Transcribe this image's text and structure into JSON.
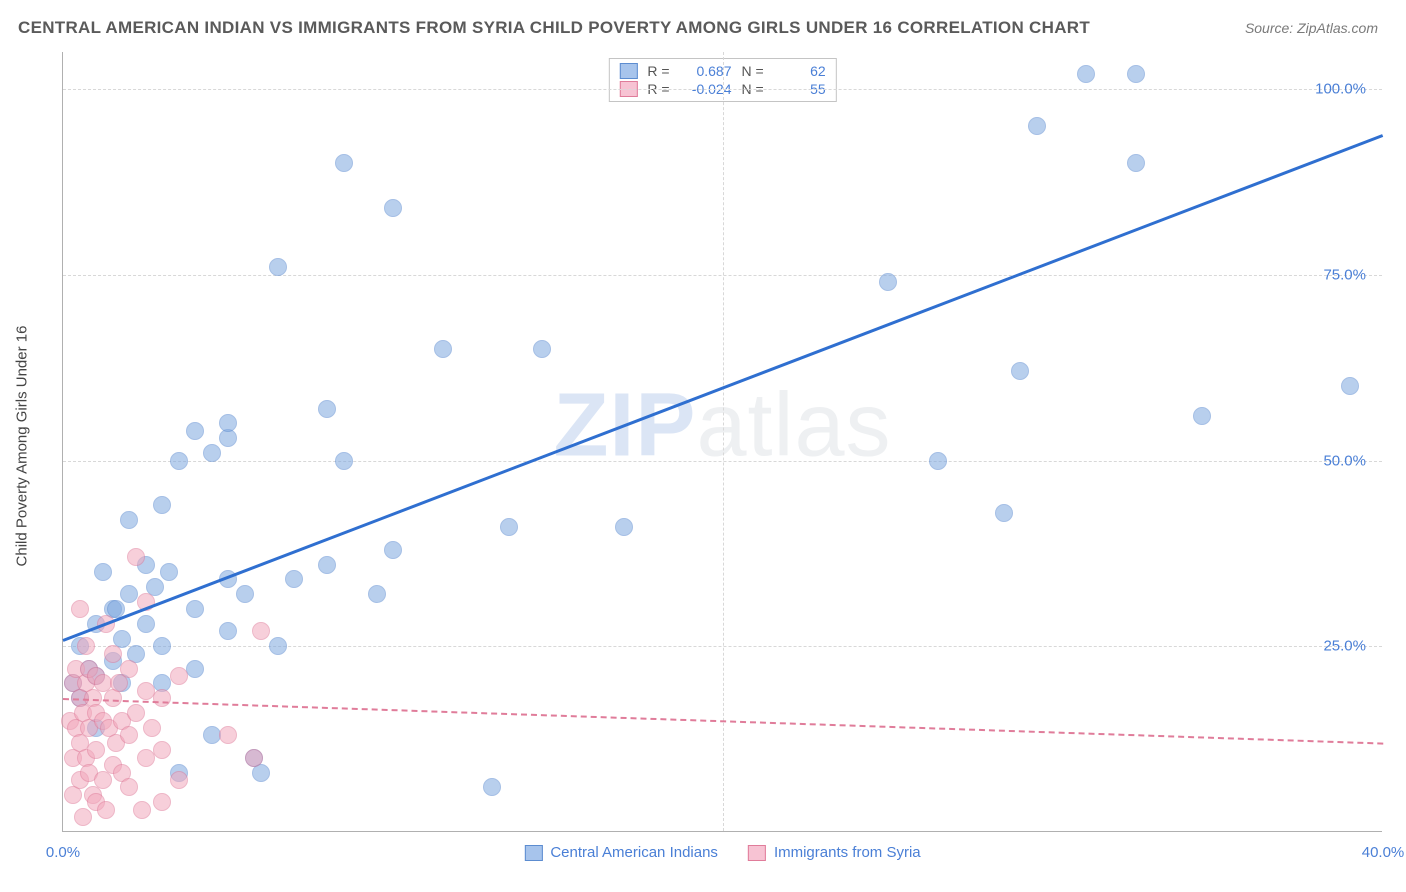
{
  "title": "CENTRAL AMERICAN INDIAN VS IMMIGRANTS FROM SYRIA CHILD POVERTY AMONG GIRLS UNDER 16 CORRELATION CHART",
  "source": "Source: ZipAtlas.com",
  "ylabel": "Child Poverty Among Girls Under 16",
  "watermark": {
    "part1": "ZIP",
    "part2": "atlas"
  },
  "chart": {
    "type": "scatter",
    "background_color": "#ffffff",
    "grid_color": "#d8d8d8",
    "axis_color": "#b0b0b0",
    "tick_label_color": "#4a7fd6",
    "tick_fontsize": 15,
    "xlim": [
      0,
      40
    ],
    "ylim": [
      0,
      105
    ],
    "xticks": [
      0,
      20,
      40
    ],
    "xtick_labels": [
      "0.0%",
      "",
      "40.0%"
    ],
    "yticks": [
      25,
      50,
      75,
      100
    ],
    "ytick_labels": [
      "25.0%",
      "50.0%",
      "75.0%",
      "100.0%"
    ],
    "gridlines_x_at": [
      20
    ],
    "marker_radius": 9,
    "marker_opacity": 0.55,
    "marker_stroke_opacity": 0.9
  },
  "series": [
    {
      "name": "Central American Indians",
      "color": "#7fa8e0",
      "stroke": "#5c8cd0",
      "trend": {
        "color": "#2f6fd0",
        "width": 3,
        "dashed": false,
        "y0": 26,
        "y1": 94
      },
      "points": [
        [
          0.3,
          20
        ],
        [
          0.5,
          18
        ],
        [
          0.5,
          25
        ],
        [
          0.8,
          22
        ],
        [
          1.0,
          14
        ],
        [
          1.0,
          21
        ],
        [
          1.0,
          28
        ],
        [
          1.2,
          35
        ],
        [
          1.5,
          23
        ],
        [
          1.5,
          30
        ],
        [
          1.6,
          30
        ],
        [
          1.8,
          20
        ],
        [
          1.8,
          26
        ],
        [
          2.0,
          32
        ],
        [
          2.0,
          42
        ],
        [
          2.2,
          24
        ],
        [
          2.5,
          28
        ],
        [
          2.5,
          36
        ],
        [
          2.8,
          33
        ],
        [
          3.0,
          20
        ],
        [
          3.0,
          25
        ],
        [
          3.0,
          44
        ],
        [
          3.2,
          35
        ],
        [
          3.5,
          8
        ],
        [
          3.5,
          50
        ],
        [
          4.0,
          22
        ],
        [
          4.0,
          30
        ],
        [
          4.0,
          54
        ],
        [
          4.5,
          13
        ],
        [
          4.5,
          51
        ],
        [
          5.0,
          27
        ],
        [
          5.0,
          34
        ],
        [
          5.0,
          53
        ],
        [
          5.0,
          55
        ],
        [
          5.5,
          32
        ],
        [
          5.8,
          10
        ],
        [
          6.0,
          8
        ],
        [
          6.5,
          25
        ],
        [
          6.5,
          76
        ],
        [
          7.0,
          34
        ],
        [
          8.0,
          36
        ],
        [
          8.0,
          57
        ],
        [
          8.5,
          50
        ],
        [
          8.5,
          90
        ],
        [
          9.5,
          32
        ],
        [
          10.0,
          38
        ],
        [
          10.0,
          84
        ],
        [
          11.5,
          65
        ],
        [
          13.0,
          6
        ],
        [
          13.5,
          41
        ],
        [
          14.5,
          65
        ],
        [
          17.0,
          41
        ],
        [
          25.0,
          74
        ],
        [
          26.5,
          50
        ],
        [
          28.5,
          43
        ],
        [
          29.0,
          62
        ],
        [
          29.5,
          95
        ],
        [
          31.0,
          102
        ],
        [
          32.5,
          102
        ],
        [
          32.5,
          90
        ],
        [
          34.5,
          56
        ],
        [
          39.0,
          60
        ]
      ]
    },
    {
      "name": "Immigrants from Syria",
      "color": "#f2a8bc",
      "stroke": "#e07c9a",
      "trend": {
        "color": "#e07c9a",
        "width": 2,
        "dashed": true,
        "y0": 18,
        "y1": 12
      },
      "points": [
        [
          0.2,
          15
        ],
        [
          0.3,
          5
        ],
        [
          0.3,
          10
        ],
        [
          0.3,
          20
        ],
        [
          0.4,
          14
        ],
        [
          0.4,
          22
        ],
        [
          0.5,
          7
        ],
        [
          0.5,
          12
        ],
        [
          0.5,
          18
        ],
        [
          0.5,
          30
        ],
        [
          0.6,
          2
        ],
        [
          0.6,
          16
        ],
        [
          0.7,
          10
        ],
        [
          0.7,
          20
        ],
        [
          0.7,
          25
        ],
        [
          0.8,
          8
        ],
        [
          0.8,
          14
        ],
        [
          0.8,
          22
        ],
        [
          0.9,
          5
        ],
        [
          0.9,
          18
        ],
        [
          1.0,
          4
        ],
        [
          1.0,
          11
        ],
        [
          1.0,
          16
        ],
        [
          1.0,
          21
        ],
        [
          1.2,
          7
        ],
        [
          1.2,
          15
        ],
        [
          1.2,
          20
        ],
        [
          1.3,
          3
        ],
        [
          1.3,
          28
        ],
        [
          1.4,
          14
        ],
        [
          1.5,
          9
        ],
        [
          1.5,
          18
        ],
        [
          1.5,
          24
        ],
        [
          1.6,
          12
        ],
        [
          1.7,
          20
        ],
        [
          1.8,
          8
        ],
        [
          1.8,
          15
        ],
        [
          2.0,
          6
        ],
        [
          2.0,
          13
        ],
        [
          2.0,
          22
        ],
        [
          2.2,
          16
        ],
        [
          2.2,
          37
        ],
        [
          2.4,
          3
        ],
        [
          2.5,
          10
        ],
        [
          2.5,
          19
        ],
        [
          2.5,
          31
        ],
        [
          2.7,
          14
        ],
        [
          3.0,
          4
        ],
        [
          3.0,
          11
        ],
        [
          3.0,
          18
        ],
        [
          3.5,
          7
        ],
        [
          3.5,
          21
        ],
        [
          5.0,
          13
        ],
        [
          5.8,
          10
        ],
        [
          6.0,
          27
        ]
      ]
    }
  ],
  "legend_top": {
    "rows": [
      {
        "swatch_fill": "#a7c4ec",
        "swatch_stroke": "#5c8cd0",
        "r_label": "R =",
        "r_value": "0.687",
        "n_label": "N =",
        "n_value": "62"
      },
      {
        "swatch_fill": "#f7c3d3",
        "swatch_stroke": "#e07c9a",
        "r_label": "R =",
        "r_value": "-0.024",
        "n_label": "N =",
        "n_value": "55"
      }
    ]
  },
  "legend_bottom": {
    "items": [
      {
        "swatch_fill": "#a7c4ec",
        "swatch_stroke": "#5c8cd0",
        "label": "Central American Indians"
      },
      {
        "swatch_fill": "#f7c3d3",
        "swatch_stroke": "#e07c9a",
        "label": "Immigrants from Syria"
      }
    ]
  }
}
